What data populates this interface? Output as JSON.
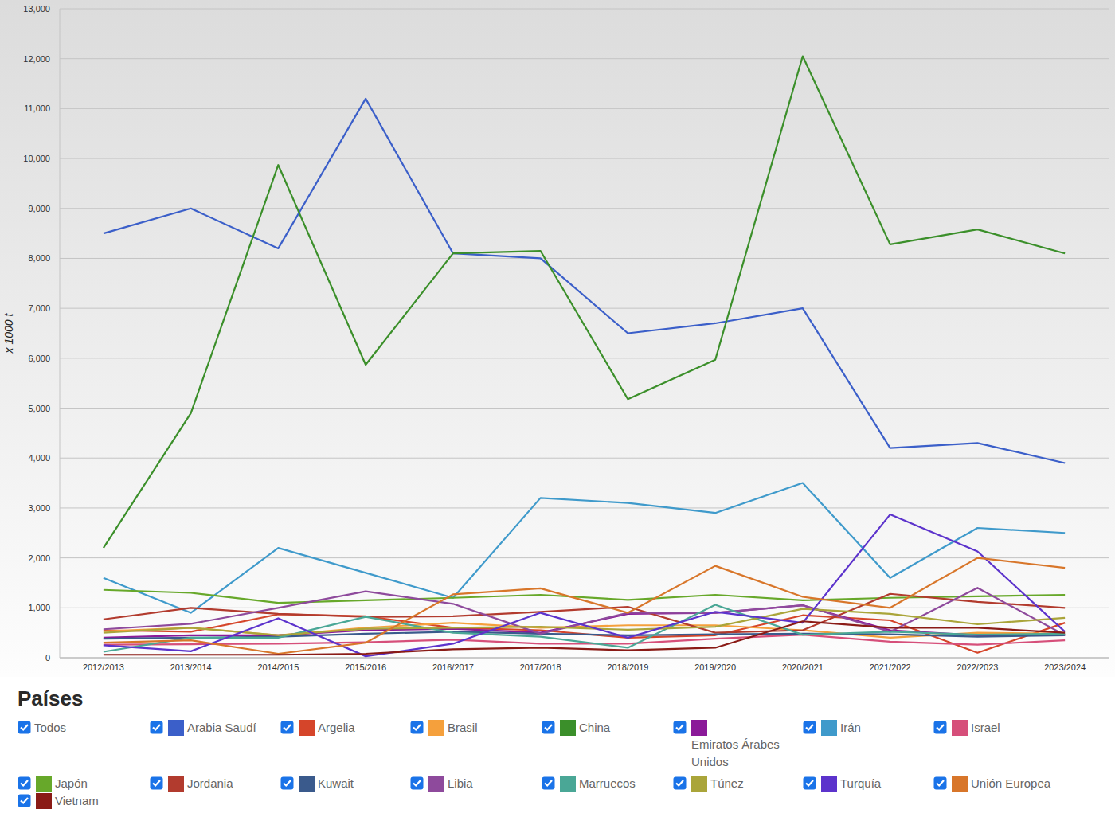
{
  "chart_data": {
    "type": "line",
    "y_label": "x 1000 t",
    "legend_title": "Países",
    "legend_all_label": "Todos",
    "legend": "bottom",
    "grid": true,
    "categories": [
      "2012/2013",
      "2013/2014",
      "2014/2015",
      "2015/2016",
      "2016/2017",
      "2017/2018",
      "2018/2019",
      "2019/2020",
      "2020/2021",
      "2021/2022",
      "2022/2023",
      "2023/2024"
    ],
    "ylim": [
      0,
      13000
    ],
    "yticks": [
      0,
      {
        "value": 1000,
        "label": "1,000"
      },
      {
        "value": 2000,
        "label": "2,000"
      },
      {
        "value": 3000,
        "label": "3,000"
      },
      {
        "value": 4000,
        "label": "4,000"
      },
      {
        "value": 5000,
        "label": "5,000"
      },
      {
        "value": 6000,
        "label": "6,000"
      },
      {
        "value": 7000,
        "label": "7,000"
      },
      {
        "value": 8000,
        "label": "8,000"
      },
      {
        "value": 9000,
        "label": "9,000"
      },
      {
        "value": 10000,
        "label": "10,000"
      },
      {
        "value": 11000,
        "label": "11,000"
      },
      {
        "value": 12000,
        "label": "12,000"
      },
      {
        "value": 13000,
        "label": "13,000"
      }
    ],
    "series": [
      {
        "name": "Arabia Saudí",
        "color": "#3b5fc9",
        "values": [
          8500,
          9000,
          8200,
          11200,
          8100,
          8000,
          6500,
          6700,
          7000,
          4200,
          4300,
          3900
        ]
      },
      {
        "name": "Argelia",
        "color": "#d5452a",
        "values": [
          550,
          520,
          870,
          830,
          600,
          550,
          400,
          450,
          850,
          750,
          100,
          700
        ]
      },
      {
        "name": "Brasil",
        "color": "#f5a03c",
        "values": [
          530,
          600,
          450,
          600,
          700,
          600,
          650,
          650,
          550,
          400,
          500,
          480
        ]
      },
      {
        "name": "China",
        "color": "#3b8f2a",
        "values": [
          2200,
          4900,
          9870,
          5870,
          8100,
          8150,
          5180,
          5970,
          12050,
          8280,
          8580,
          8100
        ]
      },
      {
        "name": "Emiratos Árabes Unidos",
        "color": "#8b1a99",
        "values": [
          400,
          450,
          450,
          550,
          580,
          500,
          880,
          900,
          1050,
          550,
          450,
          450
        ]
      },
      {
        "name": "Irán",
        "color": "#3f9acb",
        "values": [
          1600,
          900,
          2200,
          1700,
          1200,
          3200,
          3100,
          2900,
          3500,
          1600,
          2600,
          2500
        ]
      },
      {
        "name": "Israel",
        "color": "#d64f7a",
        "values": [
          260,
          270,
          280,
          310,
          360,
          280,
          280,
          380,
          460,
          320,
          260,
          350
        ]
      },
      {
        "name": "Japón",
        "color": "#67a82a",
        "values": [
          1360,
          1300,
          1100,
          1150,
          1200,
          1260,
          1160,
          1260,
          1150,
          1200,
          1230,
          1260
        ]
      },
      {
        "name": "Jordania",
        "color": "#b23b2e",
        "values": [
          770,
          1000,
          880,
          820,
          830,
          920,
          1020,
          500,
          550,
          1280,
          1120,
          1000
        ]
      },
      {
        "name": "Kuwait",
        "color": "#3a5a8c",
        "values": [
          380,
          400,
          420,
          480,
          520,
          480,
          450,
          470,
          480,
          470,
          420,
          450
        ]
      },
      {
        "name": "Libia",
        "color": "#8e4a9c",
        "values": [
          570,
          680,
          1000,
          1330,
          1080,
          480,
          900,
          900,
          1050,
          520,
          1400,
          450
        ]
      },
      {
        "name": "Marruecos",
        "color": "#4aa796",
        "values": [
          120,
          400,
          400,
          820,
          500,
          420,
          200,
          1060,
          460,
          520,
          460,
          480
        ]
      },
      {
        "name": "Túnez",
        "color": "#aaa53a",
        "values": [
          500,
          600,
          450,
          580,
          600,
          620,
          560,
          620,
          980,
          880,
          670,
          800
        ]
      },
      {
        "name": "Turquía",
        "color": "#5c33cc",
        "values": [
          250,
          130,
          790,
          30,
          280,
          900,
          400,
          920,
          700,
          2870,
          2130,
          520
        ]
      },
      {
        "name": "Unión Europea",
        "color": "#d8762a",
        "values": [
          300,
          350,
          80,
          300,
          1270,
          1390,
          900,
          1840,
          1220,
          1000,
          2000,
          1800
        ]
      },
      {
        "name": "Vietnam",
        "color": "#8a1b16",
        "values": [
          60,
          60,
          60,
          80,
          170,
          200,
          150,
          200,
          730,
          600,
          600,
          500
        ]
      }
    ]
  }
}
